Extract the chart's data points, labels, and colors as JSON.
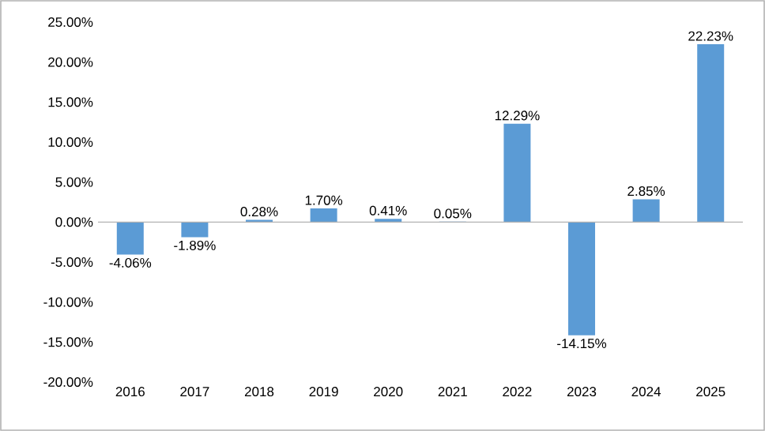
{
  "chart_data": {
    "type": "bar",
    "categories": [
      "2016",
      "2017",
      "2018",
      "2019",
      "2020",
      "2021",
      "2022",
      "2023",
      "2024",
      "2025"
    ],
    "values": [
      -4.06,
      -1.89,
      0.28,
      1.7,
      0.41,
      0.05,
      12.29,
      -14.15,
      2.85,
      22.23
    ],
    "value_labels": [
      "-4.06%",
      "-1.89%",
      "0.28%",
      "1.70%",
      "0.41%",
      "0.05%",
      "12.29%",
      "-14.15%",
      "2.85%",
      "22.23%"
    ],
    "color": "#5b9bd5",
    "ylim": [
      -20,
      25
    ],
    "yticks": [
      {
        "value": -20,
        "label": "-20.00%"
      },
      {
        "value": -15,
        "label": "-15.00%"
      },
      {
        "value": -10,
        "label": "-10.00%"
      },
      {
        "value": -5,
        "label": "-5.00%"
      },
      {
        "value": 0,
        "label": "0.00%"
      },
      {
        "value": 5,
        "label": "5.00%"
      },
      {
        "value": 10,
        "label": "10.00%"
      },
      {
        "value": 15,
        "label": "15.00%"
      },
      {
        "value": 20,
        "label": "20.00%"
      },
      {
        "value": 25,
        "label": "25.00%"
      }
    ]
  }
}
